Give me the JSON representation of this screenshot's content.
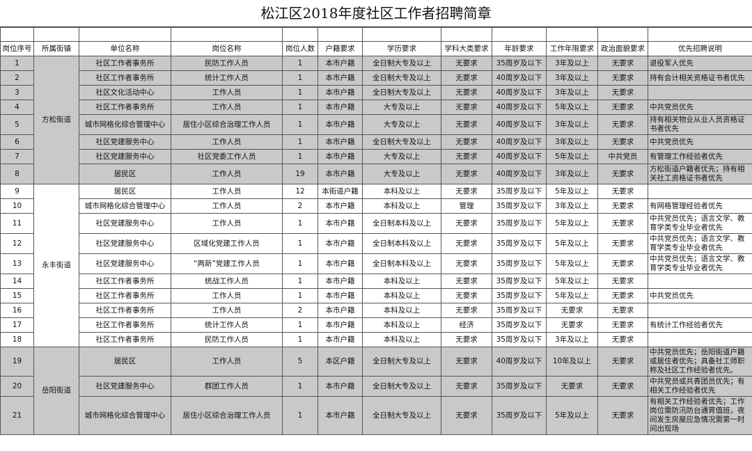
{
  "header": {
    "title": "松江区2018年度社区工作者招聘简章"
  },
  "table": {
    "columns": [
      "岗位序号",
      "所属街镇",
      "单位名称",
      "岗位名称",
      "岗位人数",
      "户籍要求",
      "学历要求",
      "学科大类要求",
      "年龄要求",
      "工作年限要求",
      "政治面貌要求",
      "优先招聘说明"
    ],
    "groups": [
      {
        "district": "方松街道",
        "rows": [
          [
            1,
            "社区工作者事务所",
            "民防工作人员",
            1,
            "本市户籍",
            "全日制大专及以上",
            "无要求",
            "35周岁及以下",
            "3年及以上",
            "无要求",
            "退役军人优先"
          ],
          [
            2,
            "社区工作者事务所",
            "统计工作人员",
            1,
            "本市户籍",
            "全日制大专及以上",
            "无要求",
            "40周岁及以下",
            "3年及以上",
            "无要求",
            "持有会计相关资格证书者优先"
          ],
          [
            3,
            "社区文化活动中心",
            "工作人员",
            1,
            "本市户籍",
            "全日制大专及以上",
            "无要求",
            "40周岁及以下",
            "3年及以上",
            "无要求",
            null
          ],
          [
            4,
            "社区工作者事务所",
            "工作人员",
            1,
            "本市户籍",
            "大专及以上",
            "无要求",
            "40周岁及以下",
            "5年及以上",
            "无要求",
            "中共党员优先"
          ],
          [
            5,
            "城市网格化综合管理中心",
            "居住小区综合治理工作人员",
            1,
            "本市户籍",
            "大专及以上",
            "无要求",
            "40周岁及以下",
            "3年及以上",
            "无要求",
            "持有相关物业从业人员资格证书者优先"
          ],
          [
            6,
            "社区党建服务中心",
            "工作人员",
            1,
            "本市户籍",
            "全日制大专及以上",
            "无要求",
            "40周岁及以下",
            "3年及以上",
            "无要求",
            "中共党员优先"
          ],
          [
            7,
            "社区党建服务中心",
            "社区党委工作人员",
            1,
            "本市户籍",
            "大专及以上",
            "无要求",
            "40周岁及以下",
            "5年及以上",
            "中共党员",
            "有管理工作经验者优先"
          ],
          [
            8,
            "居民区",
            "工作人员",
            19,
            "本市户籍",
            "大专及以上",
            "无要求",
            "40周岁及以下",
            "3年及以上",
            "无要求",
            "方松街道户籍者优先；持有相关社工资格证书者优先"
          ]
        ]
      },
      {
        "district": "永丰街道",
        "rows": [
          [
            9,
            "居民区",
            "工作人员",
            12,
            "本街道户籍",
            "本科及以上",
            "无要求",
            "35周岁及以下",
            "5年及以上",
            "无要求",
            null
          ],
          [
            10,
            "城市网格化综合管理中心",
            "工作人员",
            2,
            "本市户籍",
            "本科及以上",
            "管理",
            "35周岁及以下",
            "3年及以上",
            "无要求",
            "有网格管理经验者优先"
          ],
          [
            11,
            "社区党建服务中心",
            "工作人员",
            1,
            "本市户籍",
            "全日制本科及以上",
            "无要求",
            "35周岁及以下",
            "5年及以上",
            "无要求",
            "中共党员优先；语言文学、教育学类专业毕业者优先"
          ],
          [
            12,
            "社区党建服务中心",
            "区域化党建工作人员",
            1,
            "本市户籍",
            "全日制本科及以上",
            "无要求",
            "35周岁及以下",
            "5年及以上",
            "无要求",
            "中共党员优先；语言文学、教育学类专业毕业者优先"
          ],
          [
            13,
            "社区党建服务中心",
            "“两新”党建工作人员",
            1,
            "本市户籍",
            "全日制本科及以上",
            "无要求",
            "35周岁及以下",
            "5年及以上",
            "无要求",
            "中共党员优先；语言文学、教育学类专业毕业者优先"
          ],
          [
            14,
            "社区工作者事务所",
            "统战工作人员",
            1,
            "本市户籍",
            "本科及以上",
            "无要求",
            "35周岁及以下",
            "5年及以上",
            "无要求",
            null
          ],
          [
            15,
            "社区工作者事务所",
            "工作人员",
            1,
            "本市户籍",
            "本科及以上",
            "无要求",
            "35周岁及以下",
            "5年及以上",
            "无要求",
            "中共党员优先"
          ],
          [
            16,
            "社区工作者事务所",
            "工作人员",
            2,
            "本市户籍",
            "本科及以上",
            "无要求",
            "35周岁及以下",
            "无要求",
            "无要求",
            null
          ],
          [
            17,
            "社区工作者事务所",
            "统计工作人员",
            1,
            "本市户籍",
            "本科及以上",
            "经济",
            "35周岁及以下",
            "无要求",
            "无要求",
            "有统计工作经验者优先"
          ],
          [
            18,
            "社区工作者事务所",
            "民防工作人员",
            1,
            "本市户籍",
            "本科及以上",
            "无要求",
            "35周岁及以下",
            "3年及以上",
            "无要求",
            null
          ]
        ]
      },
      {
        "district": "岳阳街道",
        "rows": [
          [
            19,
            "居民区",
            "工作人员",
            5,
            "本区户籍",
            "全日制大专及以上",
            "无要求",
            "40周岁及以下",
            "10年及以上",
            "无要求",
            "中共党员优先；岳阳街道户籍或居住者优先；具备社工师职称及社区工作经验者优先。"
          ],
          [
            20,
            "社区党建服务中心",
            "群团工作人员",
            1,
            "本市户籍",
            "全日制大专及以上",
            "无要求",
            "35周岁及以下",
            "无要求",
            "无要求",
            "中共党员或共青团员优先；有相关工作经验者优先"
          ],
          [
            21,
            "城市网格化综合管理中心",
            "居住小区综合治理工作人员",
            1,
            "本市户籍",
            "全日制大专及以上",
            "无要求",
            "35周岁及以下",
            "5年及以上",
            "无要求",
            "有相关工作经验者优先；工作岗位需防汛防台通宵值班，夜间发生房屋应急情况需第一时间出现场"
          ]
        ]
      }
    ]
  }
}
